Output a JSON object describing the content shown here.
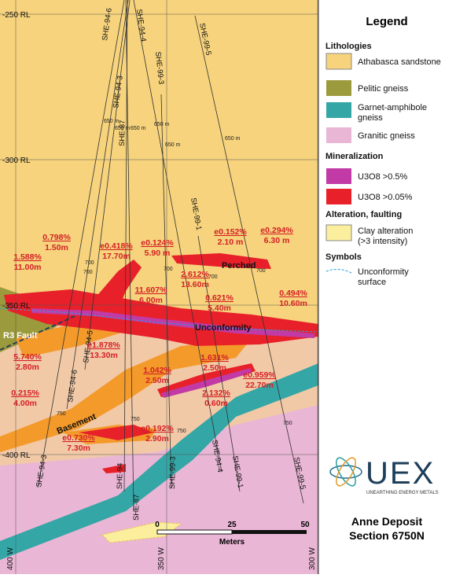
{
  "grid_labels": {
    "elevation": [
      "-250 RL",
      "-300 RL",
      "-350 RL",
      "-400 RL"
    ],
    "easting": [
      "400 W",
      "350 W",
      "300 W"
    ]
  },
  "drill_holes": {
    "collars": [
      "SHE-94-6",
      "SHE-94-4",
      "SHE-99-5",
      "SHE-99-3",
      "SHE-94-3",
      "SHE-87",
      "SHE-99-1"
    ],
    "toes": [
      "SHE-94-3",
      "SHE-94-6",
      "SHE-94-5",
      "SHE-94",
      "SHE-87",
      "SHE-99-3",
      "SHE-94-4",
      "SHE-99-1",
      "SHE-99-5"
    ]
  },
  "depth_marks": [
    "650 m",
    "650 m",
    "650 m",
    "650 m",
    "650 m",
    "650 m",
    "700",
    "700",
    "700",
    "700",
    "700",
    "750",
    "750",
    "750",
    "750"
  ],
  "intercepts": [
    {
      "grade": "0.798%",
      "length": "1.50m"
    },
    {
      "grade": "1.588%",
      "length": "11.00m"
    },
    {
      "grade": "e0.418%",
      "length": "17.70m"
    },
    {
      "grade": "e0.124%",
      "length": "5.90 m"
    },
    {
      "grade": "e0.152%",
      "length": "2.10 m"
    },
    {
      "grade": "e0.294%",
      "length": "6.30 m"
    },
    {
      "grade": "2.612%",
      "length": "13.60m"
    },
    {
      "grade": "11.607%",
      "length": "6.00m"
    },
    {
      "grade": "0.621%",
      "length": "5.40m"
    },
    {
      "grade": "0.494%",
      "length": "10.60m"
    },
    {
      "grade": "5.740%",
      "length": "2.80m"
    },
    {
      "grade": "e1.878%",
      "length": "13.30m"
    },
    {
      "grade": "1.042%",
      "length": "2.50m"
    },
    {
      "grade": "1.631%",
      "length": "2.50m"
    },
    {
      "grade": "e0.959%",
      "length": "22.70m"
    },
    {
      "grade": "0.215%",
      "length": "4.00m"
    },
    {
      "grade": "2.132%",
      "length": "0.60m"
    },
    {
      "grade": "e0.730%",
      "length": "7.30m"
    },
    {
      "grade": "e0.192%",
      "length": "2.90m"
    }
  ],
  "zone_labels": [
    "Perched",
    "Unconformity",
    "R3 Fault",
    "Basement"
  ],
  "legend": {
    "title": "Legend",
    "lithologies": "Lithologies",
    "athabasca": "Athabasca sandstone",
    "pelitic": "Pelitic gneiss",
    "garnet": [
      "Garnet-amphibole",
      "gneiss"
    ],
    "granitic": "Granitic gneiss",
    "mineralization": "Mineralization",
    "u_high": "U3O8 >0.5%",
    "u_low": "U3O8 >0.05%",
    "alteration": "Alteration, faulting",
    "clay": [
      "Clay alteration",
      "(>3 intensity)"
    ],
    "symbols": "Symbols",
    "unconformity": [
      "Unconformity",
      "surface"
    ]
  },
  "logo": {
    "name": "UEX",
    "tagline": "UNEARTHING ENERGY METALS"
  },
  "caption": {
    "deposit": "Anne Deposit",
    "section": "Section 6750N"
  },
  "scale": {
    "ticks": [
      "0",
      "25",
      "50"
    ],
    "unit": "Meters"
  }
}
